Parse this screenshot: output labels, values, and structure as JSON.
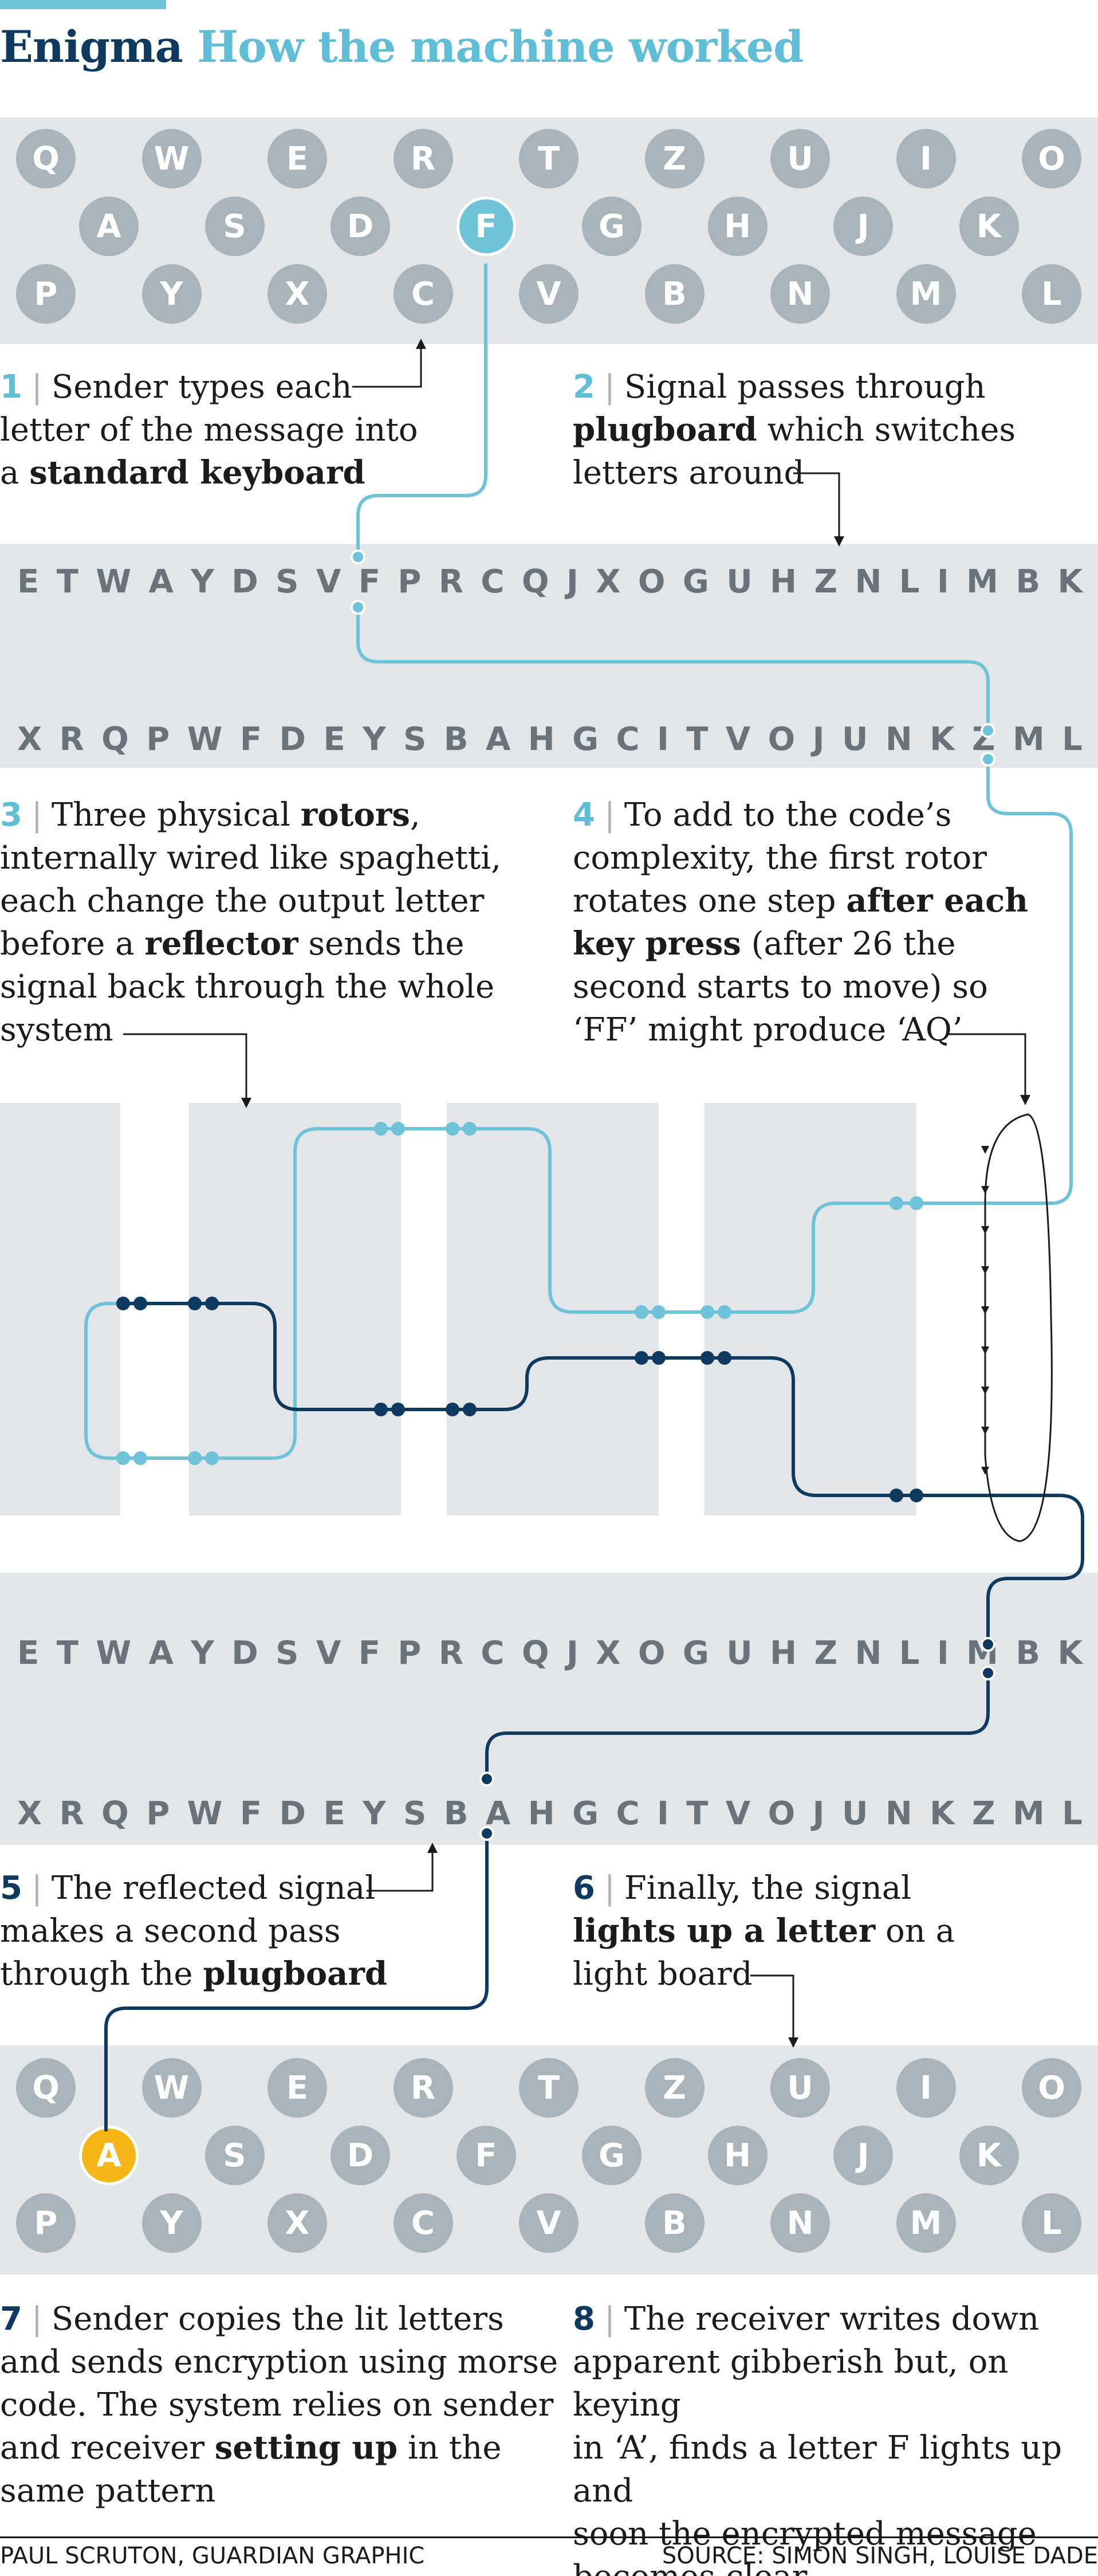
{
  "header": {
    "title_primary": "Enigma",
    "title_secondary": "How the machine worked"
  },
  "keyboard_top": {
    "rows": [
      [
        "Q",
        "W",
        "E",
        "R",
        "T",
        "Z",
        "U",
        "I",
        "O"
      ],
      [
        "A",
        "S",
        "D",
        "F",
        "G",
        "H",
        "J",
        "K"
      ],
      [
        "P",
        "Y",
        "X",
        "C",
        "V",
        "B",
        "N",
        "M",
        "L"
      ]
    ],
    "highlighted_key": "F",
    "highlight_color": "#6ec3d8"
  },
  "plugboard_1": {
    "top_row": [
      "E",
      "T",
      "W",
      "A",
      "Y",
      "D",
      "S",
      "V",
      "F",
      "P",
      "R",
      "C",
      "Q",
      "J",
      "X",
      "O",
      "G",
      "U",
      "H",
      "Z",
      "N",
      "L",
      "I",
      "M",
      "B",
      "K"
    ],
    "bottom_row": [
      "X",
      "R",
      "Q",
      "P",
      "W",
      "F",
      "D",
      "E",
      "Y",
      "S",
      "B",
      "A",
      "H",
      "G",
      "C",
      "I",
      "T",
      "V",
      "O",
      "J",
      "U",
      "N",
      "K",
      "Z",
      "M",
      "L"
    ]
  },
  "plugboard_2": {
    "top_row": [
      "E",
      "T",
      "W",
      "A",
      "Y",
      "D",
      "S",
      "V",
      "F",
      "P",
      "R",
      "C",
      "Q",
      "J",
      "X",
      "O",
      "G",
      "U",
      "H",
      "Z",
      "N",
      "L",
      "I",
      "M",
      "B",
      "K"
    ],
    "bottom_row": [
      "X",
      "R",
      "Q",
      "P",
      "W",
      "F",
      "D",
      "E",
      "Y",
      "S",
      "B",
      "A",
      "H",
      "G",
      "C",
      "I",
      "T",
      "V",
      "O",
      "J",
      "U",
      "N",
      "K",
      "Z",
      "M",
      "L"
    ]
  },
  "steps": {
    "s1": {
      "num": "1",
      "line1": "Sender types each",
      "line2": "letter of the message into",
      "line3_pre": "a ",
      "line3_bold": "standard keyboard"
    },
    "s2": {
      "num": "2",
      "line1": "Signal passes through",
      "line2_bold": "plugboard",
      "line2_post": " which switches",
      "line3": "letters around"
    },
    "s3": {
      "num": "3",
      "line1_pre": "Three physical ",
      "line1_bold": "rotors",
      "line1_post": ",",
      "line2": "internally wired like spaghetti,",
      "line3": "each change the output letter",
      "line4_pre": "before a ",
      "line4_bold": "reflector",
      "line4_post": " sends the",
      "line5": "signal back through the whole",
      "line6": "system"
    },
    "s4": {
      "num": "4",
      "line1": "To add to the code’s",
      "line2": "complexity, the first rotor",
      "line3_pre": "rotates one step ",
      "line3_bold": "after each",
      "line4_bold": "key press",
      "line4_post": " (after 26 the",
      "line5": "second starts to move) so",
      "line6": "‘FF’ might produce ‘AQ’"
    },
    "s5": {
      "num": "5",
      "line1": "The reflected signal",
      "line2": "makes a second pass",
      "line3_pre": "through the ",
      "line3_bold": "plugboard"
    },
    "s6": {
      "num": "6",
      "line1": "Finally, the signal",
      "line2_bold": "lights up a letter",
      "line2_post": " on a",
      "line3": "light board"
    },
    "s7": {
      "num": "7",
      "line1": "Sender copies the lit letters",
      "line2": "and sends encryption using morse",
      "line3": "code. The system relies on sender",
      "line4_pre": "and receiver ",
      "line4_bold": "setting up",
      "line4_post": " in the",
      "line5": "same pattern"
    },
    "s8": {
      "num": "8",
      "line1": "The receiver writes down",
      "line2": "apparent gibberish but, on keying",
      "line3": "in ‘A’, finds a letter F lights up and",
      "line4": "soon the encrypted message",
      "line5": "becomes clear"
    }
  },
  "keyboard_bottom": {
    "rows": [
      [
        "Q",
        "W",
        "E",
        "R",
        "T",
        "Z",
        "U",
        "I",
        "O"
      ],
      [
        "A",
        "S",
        "D",
        "F",
        "G",
        "H",
        "J",
        "K"
      ],
      [
        "P",
        "Y",
        "X",
        "C",
        "V",
        "B",
        "N",
        "M",
        "L"
      ]
    ],
    "lit_key": "A",
    "lit_color": "#f7b618"
  },
  "colors": {
    "signal_forward": "#6ec3d8",
    "signal_return": "#0f3a5f",
    "key_default": "#a9b3ba",
    "band": "#e2e6e9"
  },
  "footer": {
    "credit": "PAUL SCRUTON, GUARDIAN GRAPHIC",
    "source": "SOURCE: SIMON SINGH, LOUISE DADE"
  }
}
